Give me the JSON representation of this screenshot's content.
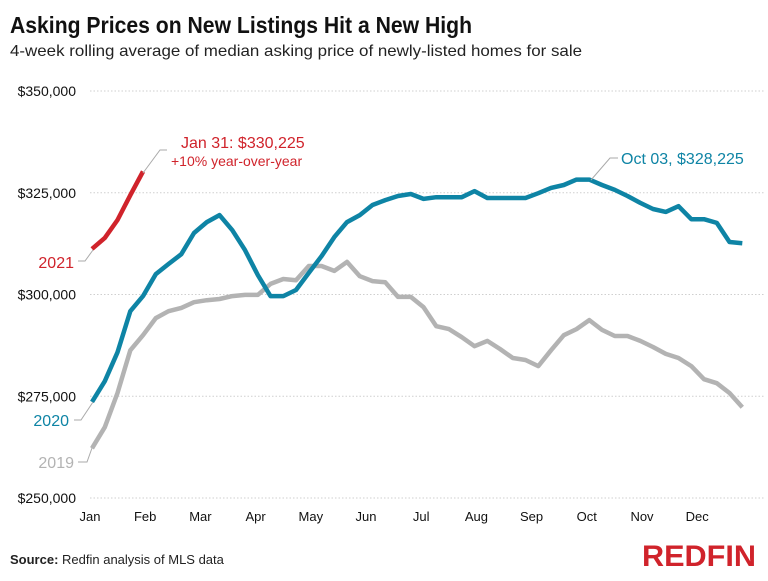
{
  "chart_data": {
    "type": "line",
    "title": "Asking Prices on New Listings Hit a New High",
    "subtitle": "4-week rolling average of median asking price of newly-listed homes for sale",
    "xlabel": "",
    "ylabel": "",
    "ylim": [
      250000,
      350000
    ],
    "yticks": [
      {
        "value": 350000,
        "label": "$350,000"
      },
      {
        "value": 325000,
        "label": "$325,000"
      },
      {
        "value": 300000,
        "label": "$300,000"
      },
      {
        "value": 275000,
        "label": "$275,000"
      },
      {
        "value": 250000,
        "label": "$250,000"
      }
    ],
    "xticks": [
      "Jan",
      "Feb",
      "Mar",
      "Apr",
      "May",
      "Jun",
      "Jul",
      "Aug",
      "Sep",
      "Oct",
      "Nov",
      "Dec"
    ],
    "x_unit": "week of year",
    "grid": "horizontal dotted",
    "series": [
      {
        "name": "2019",
        "color": "#b3b3b3",
        "values": [
          262200,
          267400,
          275800,
          286300,
          290000,
          294200,
          295900,
          296700,
          298100,
          298600,
          298900,
          299600,
          299900,
          299900,
          302600,
          303800,
          303500,
          307000,
          307000,
          305800,
          308000,
          304500,
          303300,
          303000,
          299400,
          299400,
          296900,
          292200,
          291500,
          289500,
          287300,
          288600,
          286600,
          284400,
          283900,
          282400,
          286300,
          290000,
          291500,
          293700,
          291300,
          289800,
          289800,
          288600,
          287100,
          285400,
          284400,
          282400,
          279200,
          278200,
          275800,
          272300
        ]
      },
      {
        "name": "2020",
        "color": "#0e84a5",
        "values": [
          273600,
          278700,
          285800,
          295900,
          299600,
          305000,
          307500,
          309900,
          315100,
          317800,
          319500,
          315800,
          310900,
          304800,
          299600,
          299600,
          301100,
          305300,
          309400,
          314100,
          317800,
          319500,
          322000,
          323200,
          324200,
          324700,
          323500,
          323900,
          323900,
          323900,
          325400,
          323700,
          323700,
          323700,
          323700,
          324900,
          326200,
          326900,
          328225,
          328225,
          326900,
          325700,
          324200,
          322500,
          321000,
          320300,
          321700,
          318500,
          318500,
          317600,
          312900,
          312600
        ]
      },
      {
        "name": "2021",
        "color": "#d0232b",
        "values": [
          311200,
          313900,
          318300,
          324400,
          330225
        ]
      }
    ],
    "annotations": {
      "peak_2021_line1": "Jan 31: $330,225",
      "peak_2021_line2": "+10% year-over-year",
      "peak_2020": "Oct 03, $328,225"
    }
  },
  "footer": {
    "source_label": "Source:",
    "source_text": " Redfin analysis of MLS data",
    "logo": "REDFIN"
  }
}
